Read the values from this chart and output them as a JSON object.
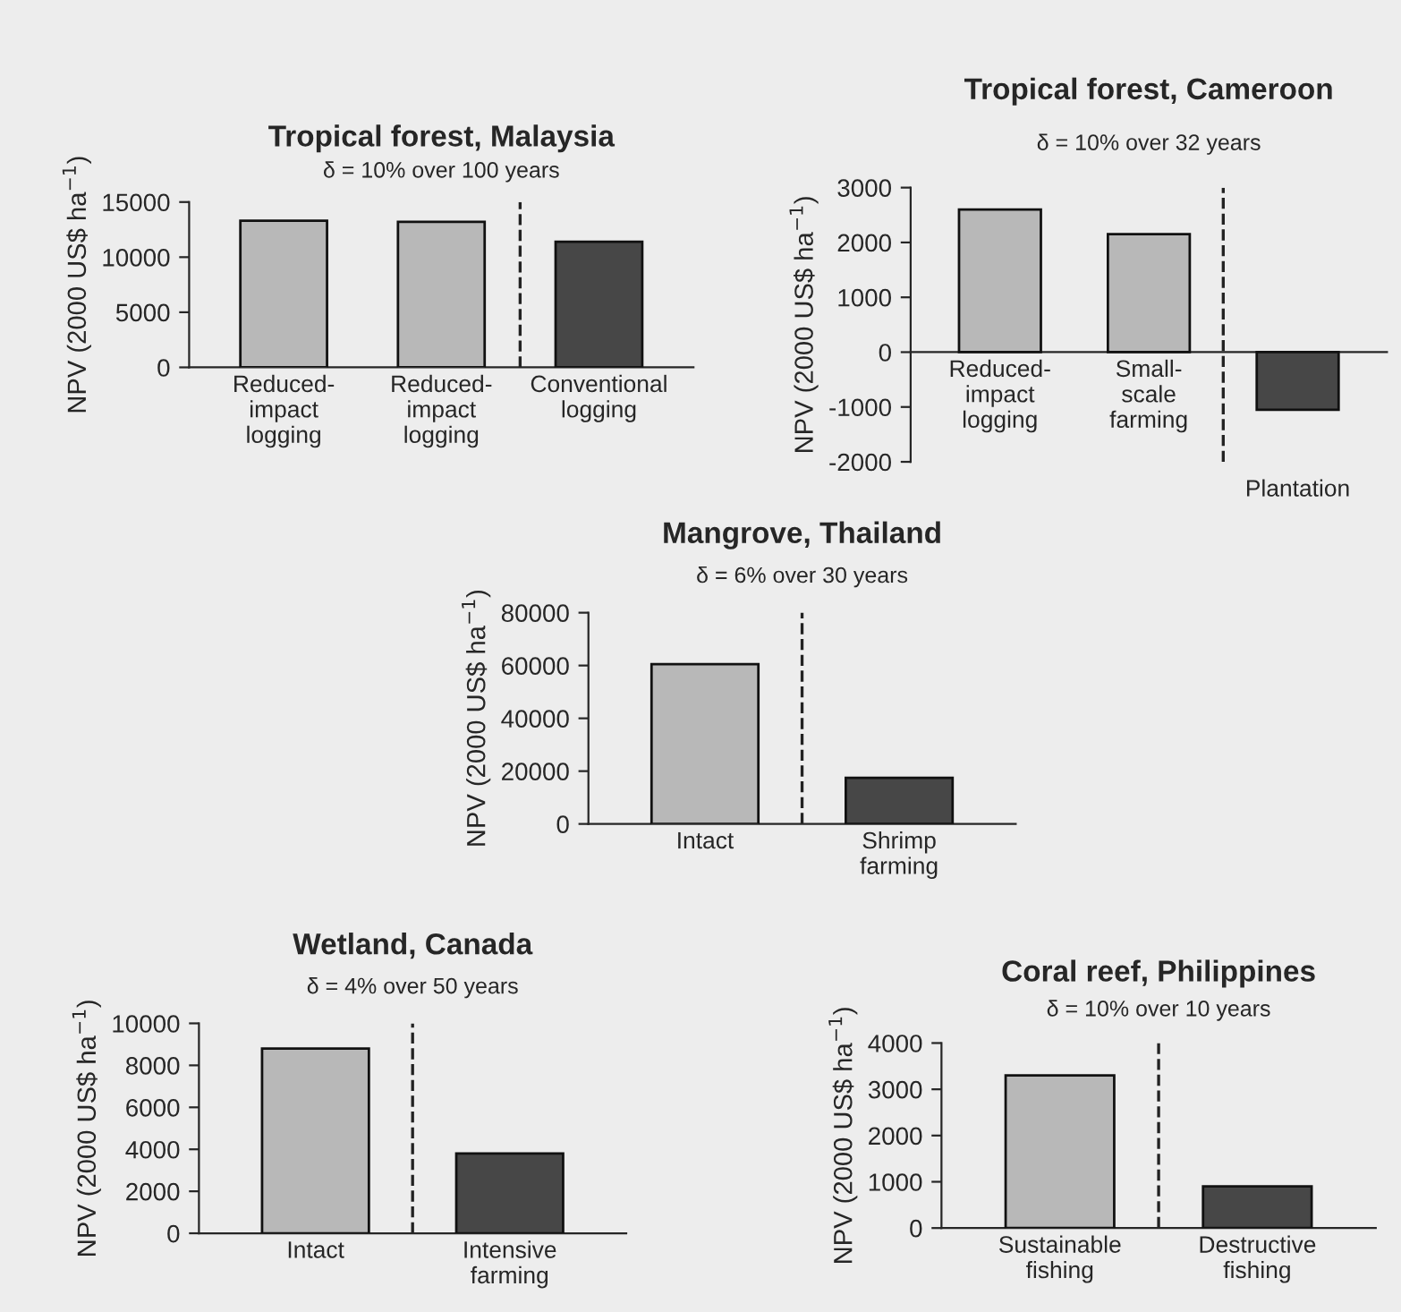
{
  "chart_data": [
    {
      "type": "bar",
      "title": "Tropical forest, Malaysia",
      "subtitle": "δ = 10% over 100 years",
      "ylabel": "NPV (2000 US$ ha$^{−1}$)",
      "categories": [
        "Reduced-\nimpact\nlogging",
        "Reduced-\nimpact\nlogging",
        "Conventional\nlogging"
      ],
      "values": [
        13300,
        13200,
        11400
      ],
      "colors": [
        "#b8b8b8",
        "#b8b8b8",
        "#474747"
      ],
      "ylim": [
        0,
        15000
      ],
      "yticks": [
        0,
        5000,
        10000,
        15000
      ]
    },
    {
      "type": "bar",
      "title": "Tropical forest, Cameroon",
      "subtitle": "δ = 10% over 32 years",
      "ylabel": "NPV (2000 US$ ha$^{−1}$)",
      "categories": [
        "Reduced-\nimpact\nlogging",
        "Small-\nscale\nfarming",
        "Plantation"
      ],
      "values": [
        2600,
        2150,
        -1050
      ],
      "colors": [
        "#b8b8b8",
        "#b8b8b8",
        "#474747"
      ],
      "ylim": [
        -2000,
        3000
      ],
      "yticks": [
        -2000,
        -1000,
        0,
        1000,
        2000,
        3000
      ]
    },
    {
      "type": "bar",
      "title": "Mangrove, Thailand",
      "subtitle": "δ = 6% over 30 years",
      "ylabel": "NPV (2000 US$ ha$^{−1}$)",
      "categories": [
        "Intact",
        "Shrimp\nfarming"
      ],
      "values": [
        60500,
        17500
      ],
      "colors": [
        "#b8b8b8",
        "#474747"
      ],
      "ylim": [
        0,
        80000
      ],
      "yticks": [
        0,
        20000,
        40000,
        60000,
        80000
      ]
    },
    {
      "type": "bar",
      "title": "Wetland, Canada",
      "subtitle": "δ = 4% over 50 years",
      "ylabel": "NPV (2000 US$ ha$^{−1}$)",
      "categories": [
        "Intact",
        "Intensive\nfarming"
      ],
      "values": [
        8800,
        3800
      ],
      "colors": [
        "#b8b8b8",
        "#474747"
      ],
      "ylim": [
        0,
        10000
      ],
      "yticks": [
        0,
        2000,
        4000,
        6000,
        8000,
        10000
      ]
    },
    {
      "type": "bar",
      "title": "Coral reef, Philippines",
      "subtitle": "δ = 10% over 10 years",
      "ylabel": "NPV (2000 US$ ha$^{−1}$)",
      "categories": [
        "Sustainable\nfishing",
        "Destructive\nfishing"
      ],
      "values": [
        3300,
        900
      ],
      "colors": [
        "#b8b8b8",
        "#474747"
      ],
      "ylim": [
        0,
        4000
      ],
      "yticks": [
        0,
        1000,
        2000,
        3000,
        4000
      ]
    }
  ]
}
